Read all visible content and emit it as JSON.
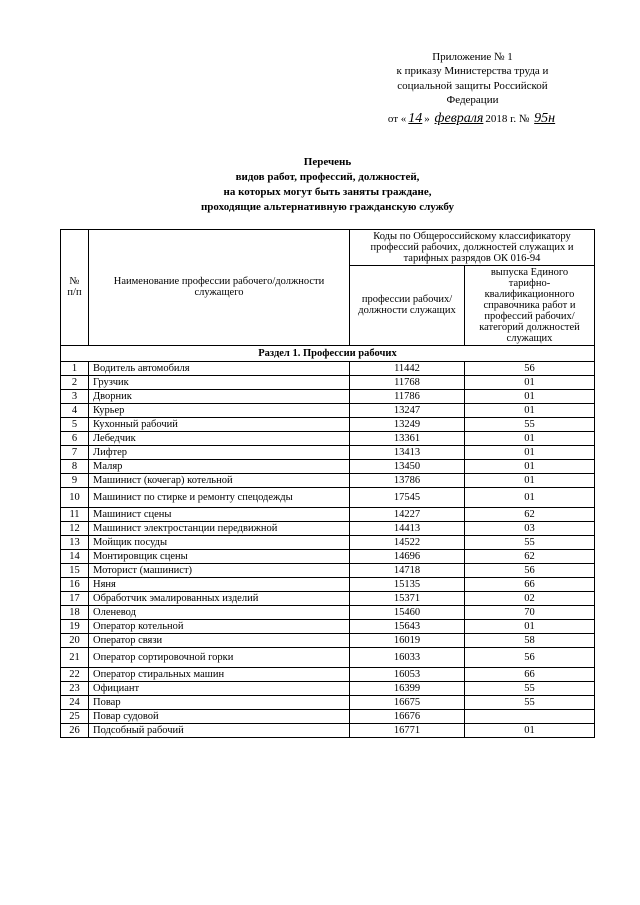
{
  "appendix": {
    "line1": "Приложение № 1",
    "line2": "к приказу Министерства труда и",
    "line3": "социальной защиты Российской",
    "line4": "Федерации"
  },
  "dateline": {
    "prefix": "от «",
    "day": "14",
    "mid": "»",
    "month": "февраля",
    "year_part": "2018 г.  №",
    "num": "95н"
  },
  "title": {
    "l1": "Перечень",
    "l2": "видов работ, профессий, должностей,",
    "l3": "на которых могут быть заняты граждане,",
    "l4": "проходящие альтернативную гражданскую службу"
  },
  "headers": {
    "num": "№ п/п",
    "name": "Наименование профессии рабочего/должности служащего",
    "codes_top": "Коды по Общероссийскому классификатору профессий рабочих, должностей служащих и тарифных разрядов ОК 016-94",
    "code1": "профессии рабочих/должности служащих",
    "code2": "выпуска Единого тарифно-квалификационного справочника работ и профессий рабочих/категорий должностей служащих"
  },
  "section_title": "Раздел 1. Профессии рабочих",
  "rows": [
    {
      "n": "1",
      "name": "Водитель автомобиля",
      "c1": "11442",
      "c2": "56"
    },
    {
      "n": "2",
      "name": "Грузчик",
      "c1": "11768",
      "c2": "01"
    },
    {
      "n": "3",
      "name": "Дворник",
      "c1": "11786",
      "c2": "01"
    },
    {
      "n": "4",
      "name": "Курьер",
      "c1": "13247",
      "c2": "01"
    },
    {
      "n": "5",
      "name": "Кухонный рабочий",
      "c1": "13249",
      "c2": "55"
    },
    {
      "n": "6",
      "name": "Лебедчик",
      "c1": "13361",
      "c2": "01"
    },
    {
      "n": "7",
      "name": "Лифтер",
      "c1": "13413",
      "c2": "01"
    },
    {
      "n": "8",
      "name": "Маляр",
      "c1": "13450",
      "c2": "01"
    },
    {
      "n": "9",
      "name": "Машинист (кочегар) котельной",
      "c1": "13786",
      "c2": "01"
    },
    {
      "n": "10",
      "name": "Машинист по стирке и ремонту спецодежды",
      "c1": "17545",
      "c2": "01",
      "tall": true
    },
    {
      "n": "11",
      "name": "Машинист сцены",
      "c1": "14227",
      "c2": "62"
    },
    {
      "n": "12",
      "name": "Машинист электростанции передвижной",
      "c1": "14413",
      "c2": "03"
    },
    {
      "n": "13",
      "name": "Мойщик посуды",
      "c1": "14522",
      "c2": "55"
    },
    {
      "n": "14",
      "name": "Монтировщик сцены",
      "c1": "14696",
      "c2": "62"
    },
    {
      "n": "15",
      "name": "Моторист (машинист)",
      "c1": "14718",
      "c2": "56"
    },
    {
      "n": "16",
      "name": "Няня",
      "c1": "15135",
      "c2": "66"
    },
    {
      "n": "17",
      "name": "Обработчик эмалированных изделий",
      "c1": "15371",
      "c2": "02"
    },
    {
      "n": "18",
      "name": "Оленевод",
      "c1": "15460",
      "c2": "70"
    },
    {
      "n": "19",
      "name": "Оператор котельной",
      "c1": "15643",
      "c2": "01"
    },
    {
      "n": "20",
      "name": "Оператор связи",
      "c1": "16019",
      "c2": "58"
    },
    {
      "n": "21",
      "name": "Оператор сортировочной горки",
      "c1": "16033",
      "c2": "56",
      "tall": true
    },
    {
      "n": "22",
      "name": "Оператор стиральных машин",
      "c1": "16053",
      "c2": "66"
    },
    {
      "n": "23",
      "name": "Официант",
      "c1": "16399",
      "c2": "55"
    },
    {
      "n": "24",
      "name": "Повар",
      "c1": "16675",
      "c2": "55"
    },
    {
      "n": "25",
      "name": "Повар судовой",
      "c1": "16676",
      "c2": ""
    },
    {
      "n": "26",
      "name": "Подсобный рабочий",
      "c1": "16771",
      "c2": "01"
    }
  ]
}
